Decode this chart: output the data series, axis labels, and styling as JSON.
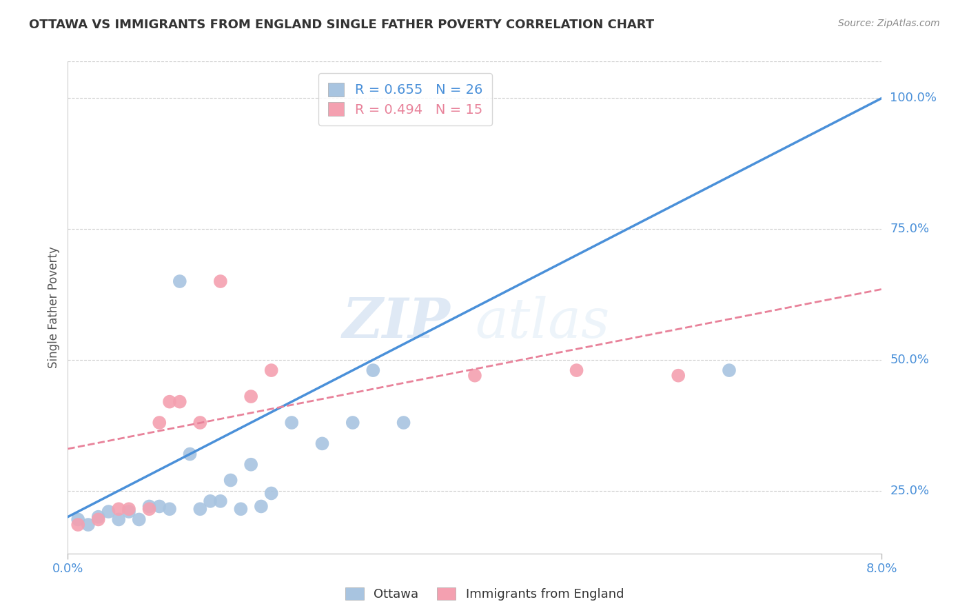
{
  "title": "OTTAWA VS IMMIGRANTS FROM ENGLAND SINGLE FATHER POVERTY CORRELATION CHART",
  "source": "Source: ZipAtlas.com",
  "ylabel": "Single Father Poverty",
  "ytick_labels": [
    "25.0%",
    "50.0%",
    "75.0%",
    "100.0%"
  ],
  "ytick_values": [
    0.25,
    0.5,
    0.75,
    1.0
  ],
  "xlim": [
    0.0,
    0.08
  ],
  "ylim": [
    0.13,
    1.07
  ],
  "legend_ottawa": "R = 0.655   N = 26",
  "legend_immigrants": "R = 0.494   N = 15",
  "ottawa_color": "#a8c4e0",
  "immigrants_color": "#f4a0b0",
  "ottawa_line_color": "#4a90d9",
  "immigrants_line_color": "#e8829a",
  "watermark_zip": "ZIP",
  "watermark_atlas": "atlas",
  "ottawa_scatter_x": [
    0.001,
    0.002,
    0.003,
    0.004,
    0.005,
    0.006,
    0.007,
    0.008,
    0.009,
    0.01,
    0.011,
    0.012,
    0.013,
    0.014,
    0.015,
    0.016,
    0.017,
    0.018,
    0.019,
    0.02,
    0.022,
    0.025,
    0.028,
    0.03,
    0.033,
    0.065
  ],
  "ottawa_scatter_y": [
    0.195,
    0.185,
    0.2,
    0.21,
    0.195,
    0.21,
    0.195,
    0.22,
    0.22,
    0.215,
    0.65,
    0.32,
    0.215,
    0.23,
    0.23,
    0.27,
    0.215,
    0.3,
    0.22,
    0.245,
    0.38,
    0.34,
    0.38,
    0.48,
    0.38,
    0.48
  ],
  "immigrants_scatter_x": [
    0.001,
    0.003,
    0.005,
    0.006,
    0.008,
    0.009,
    0.01,
    0.011,
    0.013,
    0.015,
    0.018,
    0.02,
    0.04,
    0.05,
    0.06
  ],
  "immigrants_scatter_y": [
    0.185,
    0.195,
    0.215,
    0.215,
    0.215,
    0.38,
    0.42,
    0.42,
    0.38,
    0.65,
    0.43,
    0.48,
    0.47,
    0.48,
    0.47
  ],
  "ottawa_trendline_x": [
    0.0,
    0.08
  ],
  "ottawa_trendline_y": [
    0.2,
    1.0
  ],
  "immigrants_trendline_x": [
    0.0,
    0.08
  ],
  "immigrants_trendline_y": [
    0.33,
    0.635
  ]
}
